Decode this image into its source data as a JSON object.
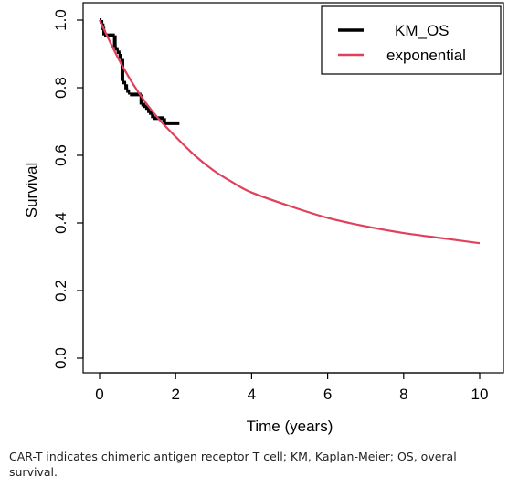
{
  "chart_data": {
    "type": "line",
    "xlabel": "Time (years)",
    "ylabel": "Survival",
    "xlim": [
      0,
      10
    ],
    "ylim": [
      0,
      1.0
    ],
    "x_ticks": [
      "0",
      "2",
      "4",
      "6",
      "8",
      "10"
    ],
    "y_ticks": [
      "0.0",
      "0.2",
      "0.4",
      "0.6",
      "0.8",
      "1.0"
    ],
    "grid": false,
    "legend_position": "top-right",
    "series": [
      {
        "name": "KM_OS",
        "style": "step",
        "color": "#000000",
        "x": [
          0.0,
          0.05,
          0.08,
          0.1,
          0.12,
          0.4,
          0.45,
          0.5,
          0.55,
          0.6,
          0.65,
          0.7,
          0.75,
          0.8,
          1.1,
          1.2,
          1.3,
          1.4,
          1.7,
          2.1
        ],
        "y": [
          1.0,
          0.99,
          0.98,
          0.97,
          0.955,
          0.92,
          0.91,
          0.9,
          0.885,
          0.82,
          0.81,
          0.795,
          0.785,
          0.78,
          0.75,
          0.74,
          0.725,
          0.71,
          0.695,
          0.695
        ]
      },
      {
        "name": "exponential",
        "style": "line",
        "color": "#e0405a",
        "x": [
          0,
          0.5,
          1,
          1.5,
          2,
          2.5,
          3,
          3.5,
          4,
          5,
          6,
          7,
          8,
          9,
          10
        ],
        "y": [
          1.0,
          0.885,
          0.79,
          0.715,
          0.655,
          0.6,
          0.555,
          0.52,
          0.49,
          0.45,
          0.415,
          0.39,
          0.37,
          0.355,
          0.34
        ]
      }
    ]
  },
  "caption": "CAR-T indicates chimeric antigen receptor T cell; KM, Kaplan-Meier; OS, overal survival."
}
